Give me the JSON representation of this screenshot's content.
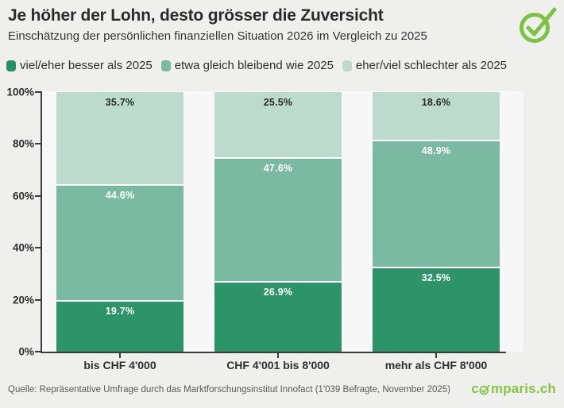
{
  "header": {
    "title": "Je höher der Lohn, desto grösser die Zuversicht",
    "subtitle": "Einschätzung der persönlichen finanziellen Situation 2026 im Vergleich zu 2025"
  },
  "legend": [
    {
      "label": "viel/eher besser als 2025",
      "color": "#27906a"
    },
    {
      "label": "etwa gleich bleibend wie 2025",
      "color": "#7ab9a2"
    },
    {
      "label": "eher/viel schlechter als 2025",
      "color": "#bcdbce"
    }
  ],
  "chart_data": {
    "type": "bar",
    "stacked": true,
    "title": "Je höher der Lohn, desto grösser die Zuversicht",
    "categories": [
      "bis CHF 4'000",
      "CHF 4'001 bis 8'000",
      "mehr als CHF 8'000"
    ],
    "series": [
      {
        "name": "viel/eher besser als 2025",
        "color": "#2d9369",
        "label_color": "#ffffff",
        "values": [
          19.7,
          26.9,
          32.5
        ]
      },
      {
        "name": "etwa gleich bleibend wie 2025",
        "color": "#7ab9a2",
        "label_color": "#ffffff",
        "values": [
          44.6,
          47.6,
          48.9
        ]
      },
      {
        "name": "eher/viel schlechter als 2025",
        "color": "#bcdbce",
        "label_color": "#2b2b2b",
        "values": [
          35.7,
          25.5,
          18.6
        ]
      }
    ],
    "xlabel": "",
    "ylabel": "",
    "ylim": [
      0,
      100
    ],
    "yticks": [
      "0%",
      "20%",
      "40%",
      "60%",
      "80%",
      "100%"
    ],
    "value_suffix": "%",
    "grid": false,
    "legend_position": "top"
  },
  "footer": {
    "source": "Quelle: Repräsentative Umfrage durch das Marktforschungsinstitut Innofact (1'039 Befragte, November 2025)",
    "brand_prefix": "c",
    "brand_suffix": "mparis.ch"
  },
  "icons": {
    "top_right": "check-circle-icon",
    "brand_o": "check-circle-icon"
  },
  "colors": {
    "page_background": "#efefee",
    "plot_background": "#f6f7f6",
    "axis": "#3c3c3c",
    "brand_green": "#85c341",
    "checkmark_green": "#7cc342",
    "source_text": "#585858"
  }
}
